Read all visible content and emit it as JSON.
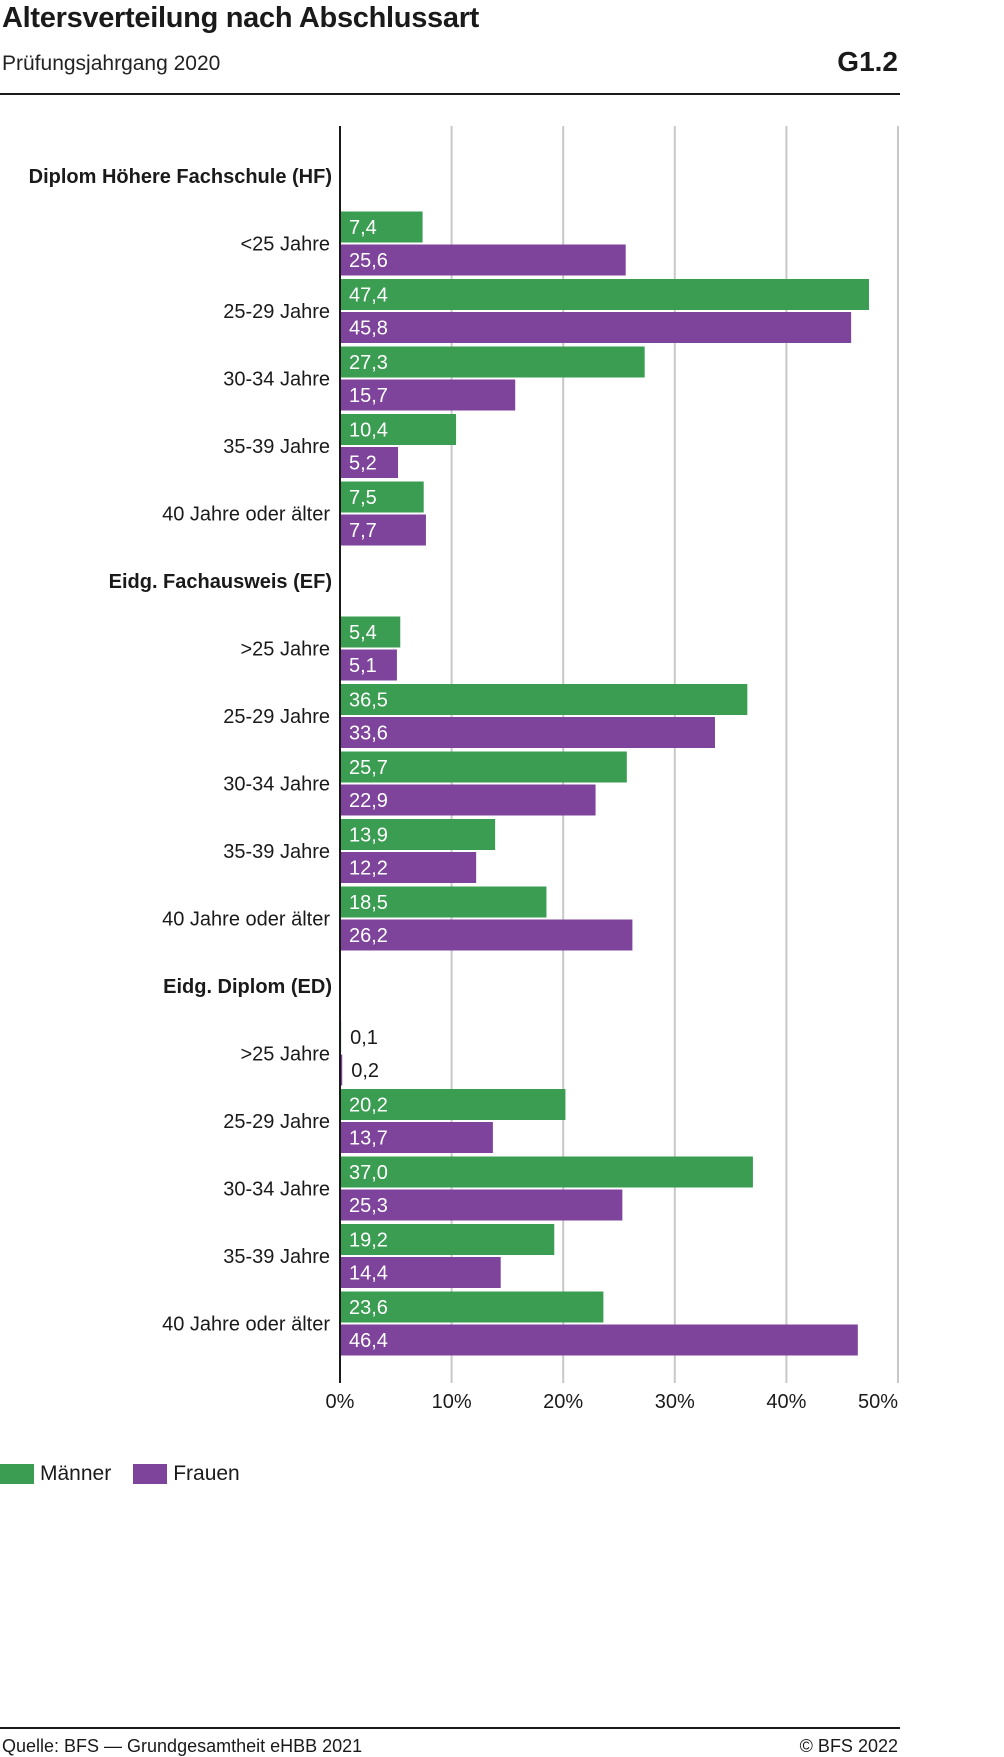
{
  "header": {
    "title": "Altersverteilung nach Abschlussart",
    "subtitle": "Prüfungsjahrgang 2020",
    "chart_id": "G1.2"
  },
  "footer": {
    "source": "Quelle: BFS — Grundgesamtheit eHBB 2021",
    "copyright": "© BFS 2022"
  },
  "colors": {
    "maenner": "#3a9d52",
    "frauen": "#7e439a",
    "grid": "#c8c8c8",
    "axis": "#1a1a1a"
  },
  "chart_data": {
    "type": "bar",
    "orientation": "horizontal",
    "title": "Altersverteilung nach Abschlussart",
    "subtitle": "Prüfungsjahrgang 2020",
    "xlim": [
      0,
      50
    ],
    "xticks": [
      "0%",
      "10%",
      "20%",
      "30%",
      "40%",
      "50%"
    ],
    "grid": true,
    "legend_position": "bottom-left",
    "series_names": [
      "Männer",
      "Frauen"
    ],
    "groups": [
      {
        "name": "Diplom Höhere Fachschule (HF)",
        "categories": [
          "<25 Jahre",
          "25-29 Jahre",
          "30-34 Jahre",
          "35-39 Jahre",
          "40 Jahre oder älter"
        ],
        "maenner": [
          7.4,
          47.4,
          27.3,
          10.4,
          7.5
        ],
        "frauen": [
          25.6,
          45.8,
          15.7,
          5.2,
          7.7
        ],
        "maenner_labels": [
          "7,4",
          "47,4",
          "27,3",
          "10,4",
          "7,5"
        ],
        "frauen_labels": [
          "25,6",
          "45,8",
          "15,7",
          "5,2",
          "7,7"
        ]
      },
      {
        "name": "Eidg. Fachausweis (EF)",
        "categories": [
          ">25 Jahre",
          "25-29 Jahre",
          "30-34 Jahre",
          "35-39 Jahre",
          "40 Jahre oder älter"
        ],
        "maenner": [
          5.4,
          36.5,
          25.7,
          13.9,
          18.5
        ],
        "frauen": [
          5.1,
          33.6,
          22.9,
          12.2,
          26.2
        ],
        "maenner_labels": [
          "5,4",
          "36,5",
          "25,7",
          "13,9",
          "18,5"
        ],
        "frauen_labels": [
          "5,1",
          "33,6",
          "22,9",
          "12,2",
          "26,2"
        ]
      },
      {
        "name": "Eidg. Diplom (ED)",
        "categories": [
          ">25 Jahre",
          "25-29 Jahre",
          "30-34 Jahre",
          "35-39 Jahre",
          "40 Jahre oder älter"
        ],
        "maenner": [
          0.1,
          20.2,
          37.0,
          19.2,
          23.6
        ],
        "frauen": [
          0.2,
          13.7,
          25.3,
          14.4,
          46.4
        ],
        "maenner_labels": [
          "0,1",
          "20,2",
          "37,0",
          "19,2",
          "23,6"
        ],
        "frauen_labels": [
          "0,2",
          "13,7",
          "25,3",
          "14,4",
          "46,4"
        ]
      }
    ]
  }
}
